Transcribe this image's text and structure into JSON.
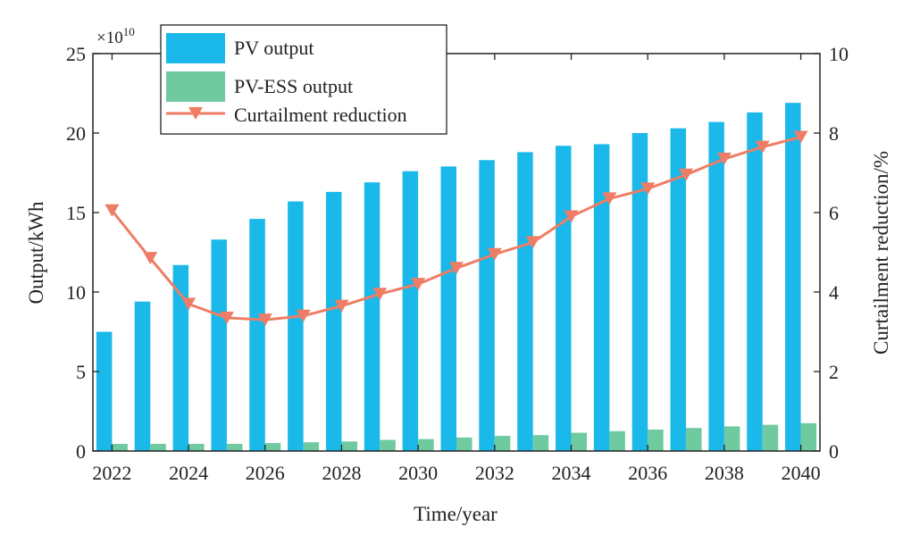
{
  "chart_data": {
    "type": "bar",
    "title": "",
    "xlabel": "Time/year",
    "ylabel": "Output/kWh",
    "y2label": "Curtailment reduction/%",
    "y_multiplier": {
      "base": "×10",
      "exponent": "10"
    },
    "categories": [
      "2022",
      "2023",
      "2024",
      "2025",
      "2026",
      "2027",
      "2028",
      "2029",
      "2030",
      "2031",
      "2032",
      "2033",
      "2034",
      "2035",
      "2036",
      "2037",
      "2038",
      "2039",
      "2040"
    ],
    "x_tick_labels": [
      "2022",
      "2024",
      "2026",
      "2028",
      "2030",
      "2032",
      "2034",
      "2036",
      "2038",
      "2040"
    ],
    "ylim": [
      0,
      25
    ],
    "y_ticks": [
      "0",
      "5",
      "10",
      "15",
      "20",
      "25"
    ],
    "y2lim": [
      0,
      10
    ],
    "y2_ticks": [
      "0",
      "2",
      "4",
      "6",
      "8",
      "10"
    ],
    "legend_position": "top-left",
    "series": [
      {
        "name": "PV output",
        "type": "bar",
        "axis": "left",
        "color": "#1bb8ea",
        "values": [
          7.5,
          9.4,
          11.7,
          13.3,
          14.6,
          15.7,
          16.3,
          16.9,
          17.6,
          17.9,
          18.3,
          18.8,
          19.2,
          19.3,
          20.0,
          20.3,
          20.7,
          21.3,
          21.9
        ]
      },
      {
        "name": "PV-ESS output",
        "type": "bar",
        "axis": "left",
        "color": "#6fcaa0",
        "values": [
          0.45,
          0.45,
          0.45,
          0.45,
          0.5,
          0.55,
          0.6,
          0.7,
          0.75,
          0.85,
          0.95,
          1.0,
          1.15,
          1.25,
          1.35,
          1.45,
          1.55,
          1.65,
          1.75
        ]
      },
      {
        "name": "Curtailment reduction",
        "type": "line",
        "axis": "right",
        "color": "#ef7d65",
        "marker": "triangle-down",
        "values": [
          6.05,
          4.85,
          3.7,
          3.35,
          3.3,
          3.4,
          3.65,
          3.95,
          4.2,
          4.6,
          4.95,
          5.25,
          5.9,
          6.35,
          6.6,
          6.95,
          7.35,
          7.65,
          7.9
        ]
      }
    ]
  }
}
